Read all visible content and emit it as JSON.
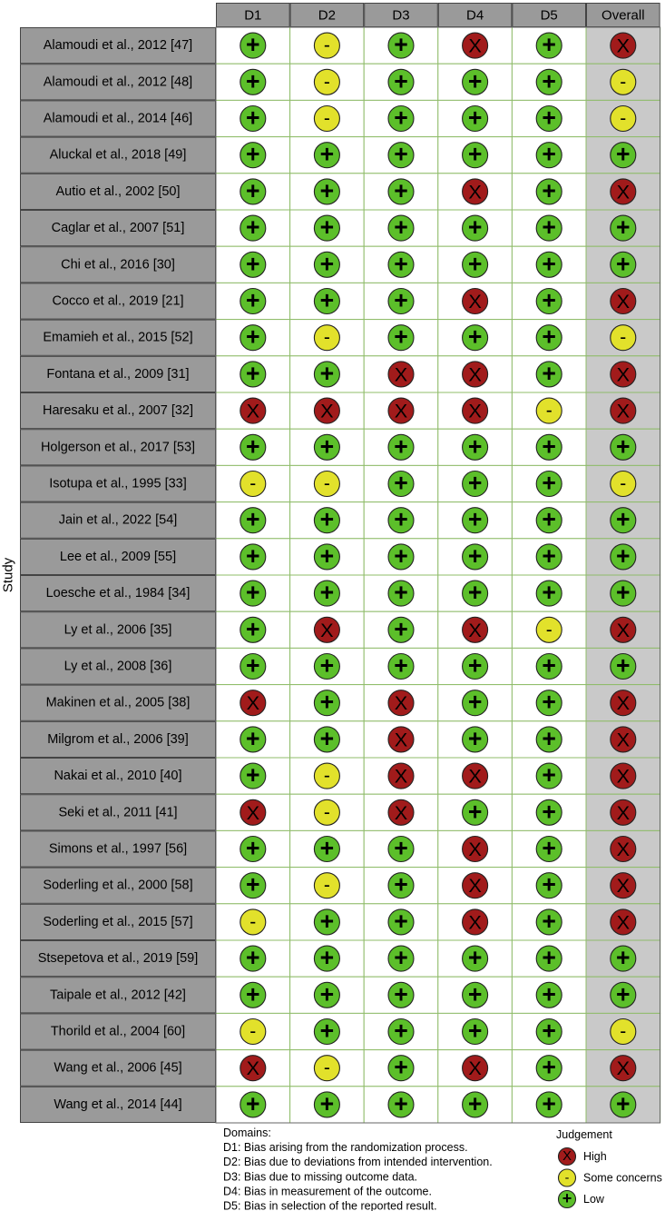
{
  "chart_data": {
    "type": "table",
    "ylabel": "Study",
    "columns": [
      "D1",
      "D2",
      "D3",
      "D4",
      "D5",
      "Overall"
    ],
    "studies": [
      "Alamoudi et al., 2012 [47]",
      "Alamoudi et al., 2012 [48]",
      "Alamoudi et al., 2014 [46]",
      "Aluckal et al., 2018 [49]",
      "Autio et al., 2002 [50]",
      "Caglar et al., 2007 [51]",
      "Chi et al., 2016 [30]",
      "Cocco et al., 2019 [21]",
      "Emamieh et al., 2015 [52]",
      "Fontana et al., 2009 [31]",
      "Haresaku et al., 2007 [32]",
      "Holgerson et al., 2017 [53]",
      "Isotupa et al., 1995 [33]",
      "Jain et al., 2022 [54]",
      "Lee et al., 2009 [55]",
      "Loesche et al., 1984 [34]",
      "Ly et al., 2006 [35]",
      "Ly et al., 2008 [36]",
      "Makinen et al., 2005 [38]",
      "Milgrom et al., 2006 [39]",
      "Nakai et al., 2010 [40]",
      "Seki et al., 2011 [41]",
      "Simons et al., 1997 [56]",
      "Soderling et al., 2000 [58]",
      "Soderling et al., 2015 [57]",
      "Stsepetova et al., 2019 [59]",
      "Taipale et al., 2012 [42]",
      "Thorild et al., 2004 [60]",
      "Wang et al., 2006 [45]",
      "Wang et al., 2014 [44]"
    ],
    "judgements": [
      [
        "low",
        "some",
        "low",
        "high",
        "low",
        "high"
      ],
      [
        "low",
        "some",
        "low",
        "low",
        "low",
        "some"
      ],
      [
        "low",
        "some",
        "low",
        "low",
        "low",
        "some"
      ],
      [
        "low",
        "low",
        "low",
        "low",
        "low",
        "low"
      ],
      [
        "low",
        "low",
        "low",
        "high",
        "low",
        "high"
      ],
      [
        "low",
        "low",
        "low",
        "low",
        "low",
        "low"
      ],
      [
        "low",
        "low",
        "low",
        "low",
        "low",
        "low"
      ],
      [
        "low",
        "low",
        "low",
        "high",
        "low",
        "high"
      ],
      [
        "low",
        "some",
        "low",
        "low",
        "low",
        "some"
      ],
      [
        "low",
        "low",
        "high",
        "high",
        "low",
        "high"
      ],
      [
        "high",
        "high",
        "high",
        "high",
        "some",
        "high"
      ],
      [
        "low",
        "low",
        "low",
        "low",
        "low",
        "low"
      ],
      [
        "some",
        "some",
        "low",
        "low",
        "low",
        "some"
      ],
      [
        "low",
        "low",
        "low",
        "low",
        "low",
        "low"
      ],
      [
        "low",
        "low",
        "low",
        "low",
        "low",
        "low"
      ],
      [
        "low",
        "low",
        "low",
        "low",
        "low",
        "low"
      ],
      [
        "low",
        "high",
        "low",
        "high",
        "some",
        "high"
      ],
      [
        "low",
        "low",
        "low",
        "low",
        "low",
        "low"
      ],
      [
        "high",
        "low",
        "high",
        "low",
        "low",
        "high"
      ],
      [
        "low",
        "low",
        "high",
        "low",
        "low",
        "high"
      ],
      [
        "low",
        "some",
        "high",
        "high",
        "low",
        "high"
      ],
      [
        "high",
        "some",
        "high",
        "low",
        "low",
        "high"
      ],
      [
        "low",
        "low",
        "low",
        "high",
        "low",
        "high"
      ],
      [
        "low",
        "some",
        "low",
        "high",
        "low",
        "high"
      ],
      [
        "some",
        "low",
        "low",
        "high",
        "low",
        "high"
      ],
      [
        "low",
        "low",
        "low",
        "low",
        "low",
        "low"
      ],
      [
        "low",
        "low",
        "low",
        "low",
        "low",
        "low"
      ],
      [
        "some",
        "low",
        "low",
        "low",
        "low",
        "some"
      ],
      [
        "high",
        "some",
        "low",
        "high",
        "low",
        "high"
      ],
      [
        "low",
        "low",
        "low",
        "low",
        "low",
        "low"
      ]
    ],
    "symbols": {
      "high": "X",
      "some": "-",
      "low": "+"
    },
    "colors": {
      "high": "#a11b1b",
      "some": "#e2e12b",
      "low": "#5cbf2a",
      "header_bg": "#9a9a9a",
      "study_bg": "#9a9a9a",
      "overall_bg": "#c9c9c9",
      "cell_bg": "#ffffff",
      "grid": "#8fbc6a"
    },
    "domains_title": "Domains:",
    "domains": [
      "D1: Bias arising from the randomization process.",
      "D2: Bias due to deviations from intended intervention.",
      "D3: Bias due to missing outcome data.",
      "D4: Bias in measurement of the outcome.",
      "D5: Bias in selection of the reported result."
    ],
    "legend_title": "Judgement",
    "legend": [
      {
        "key": "high",
        "label": "High"
      },
      {
        "key": "some",
        "label": "Some concerns"
      },
      {
        "key": "low",
        "label": "Low"
      }
    ]
  }
}
